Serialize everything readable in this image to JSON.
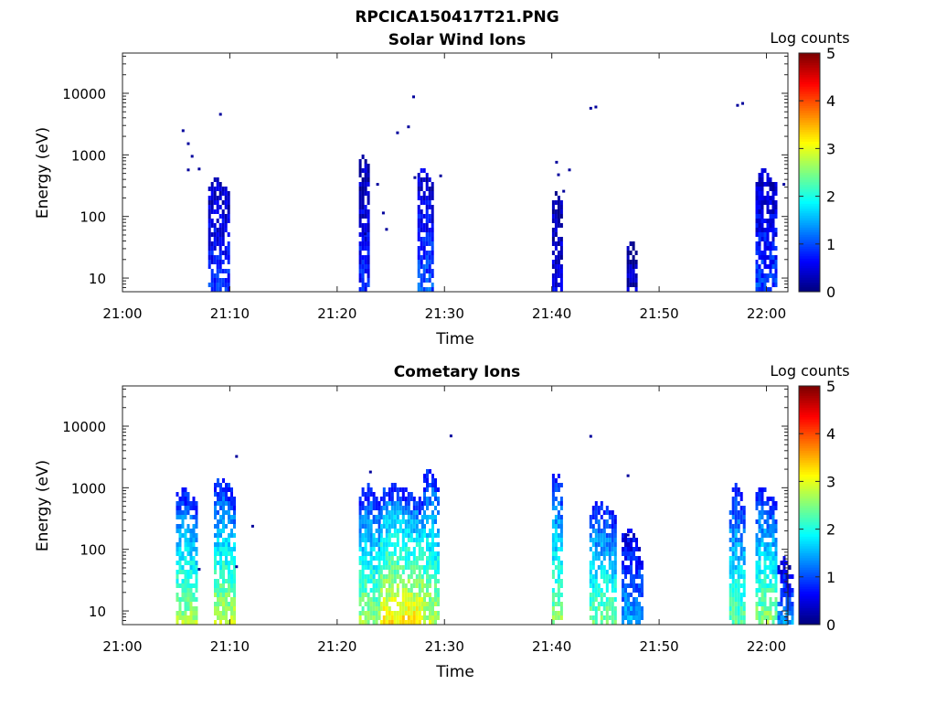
{
  "figure": {
    "title": "RPCICA150417T21.PNG"
  },
  "colorbar": {
    "label": "Log counts",
    "ticks": [
      "0",
      "1",
      "2",
      "3",
      "4",
      "5"
    ],
    "range": [
      0,
      5
    ],
    "colormap": "jet"
  },
  "chart_data": [
    {
      "type": "heatmap",
      "title": "Solar Wind Ions",
      "xlabel": "Time",
      "ylabel": "Energy (eV)",
      "x_ticks": [
        "21:00",
        "21:10",
        "21:20",
        "21:30",
        "21:40",
        "21:50",
        "22:00"
      ],
      "y_ticks": [
        "10",
        "100",
        "1000",
        "10000"
      ],
      "xlim_minutes_after_2100": [
        0,
        62
      ],
      "ylim": [
        6,
        45000
      ],
      "yscale": "log",
      "colorbar_label": "Log counts",
      "bursts": [
        {
          "start": 21.133,
          "end": 21.167,
          "top_energy": 400,
          "intensity": 0.8
        },
        {
          "start": 21.367,
          "end": 21.383,
          "top_energy": 1000,
          "intensity": 0.7
        },
        {
          "start": 21.458,
          "end": 21.483,
          "top_energy": 600,
          "intensity": 1.0
        },
        {
          "start": 21.667,
          "end": 21.683,
          "top_energy": 250,
          "intensity": 0.5
        },
        {
          "start": 21.783,
          "end": 21.8,
          "top_energy": 40,
          "intensity": 0.3
        },
        {
          "start": 21.983,
          "end": 22.017,
          "top_energy": 550,
          "intensity": 0.9
        }
      ],
      "scatter": [
        {
          "t": 21.092,
          "e": 2600
        },
        {
          "t": 21.1,
          "e": 1600
        },
        {
          "t": 21.106,
          "e": 1000
        },
        {
          "t": 21.1,
          "e": 600
        },
        {
          "t": 21.117,
          "e": 620
        },
        {
          "t": 21.15,
          "e": 4800
        },
        {
          "t": 21.375,
          "e": 55
        },
        {
          "t": 21.394,
          "e": 350
        },
        {
          "t": 21.403,
          "e": 120
        },
        {
          "t": 21.408,
          "e": 65
        },
        {
          "t": 21.425,
          "e": 2400
        },
        {
          "t": 21.442,
          "e": 3000
        },
        {
          "t": 21.45,
          "e": 9200
        },
        {
          "t": 21.452,
          "e": 450
        },
        {
          "t": 21.492,
          "e": 480
        },
        {
          "t": 21.672,
          "e": 800
        },
        {
          "t": 21.675,
          "e": 500
        },
        {
          "t": 21.683,
          "e": 270
        },
        {
          "t": 21.692,
          "e": 600
        },
        {
          "t": 21.725,
          "e": 6000
        },
        {
          "t": 21.733,
          "e": 6300
        },
        {
          "t": 21.953,
          "e": 6700
        },
        {
          "t": 21.961,
          "e": 7200
        },
        {
          "t": 22.025,
          "e": 350
        }
      ]
    },
    {
      "type": "heatmap",
      "title": "Cometary Ions",
      "xlabel": "Time",
      "ylabel": "Energy (eV)",
      "x_ticks": [
        "21:00",
        "21:10",
        "21:20",
        "21:30",
        "21:40",
        "21:50",
        "22:00"
      ],
      "y_ticks": [
        "10",
        "100",
        "1000",
        "10000"
      ],
      "xlim_minutes_after_2100": [
        0,
        62
      ],
      "ylim": [
        6,
        45000
      ],
      "yscale": "log",
      "colorbar_label": "Log counts",
      "bursts": [
        {
          "start": 21.083,
          "end": 21.117,
          "top_energy": 950,
          "intensity": 2.5
        },
        {
          "start": 21.142,
          "end": 21.175,
          "top_energy": 1400,
          "intensity": 2.6
        },
        {
          "start": 21.367,
          "end": 21.4,
          "top_energy": 1100,
          "intensity": 2.5
        },
        {
          "start": 21.4,
          "end": 21.467,
          "top_energy": 1100,
          "intensity": 3.0
        },
        {
          "start": 21.467,
          "end": 21.492,
          "top_energy": 1900,
          "intensity": 2.6
        },
        {
          "start": 21.667,
          "end": 21.683,
          "top_energy": 1900,
          "intensity": 2.4
        },
        {
          "start": 21.725,
          "end": 21.767,
          "top_energy": 600,
          "intensity": 2.3
        },
        {
          "start": 21.775,
          "end": 21.808,
          "top_energy": 200,
          "intensity": 1.4
        },
        {
          "start": 21.942,
          "end": 21.967,
          "top_energy": 1100,
          "intensity": 2.2
        },
        {
          "start": 21.983,
          "end": 22.017,
          "top_energy": 1000,
          "intensity": 2.4
        },
        {
          "start": 22.017,
          "end": 22.042,
          "top_energy": 70,
          "intensity": 1.3
        }
      ],
      "scatter": [
        {
          "t": 21.175,
          "e": 3400
        },
        {
          "t": 21.2,
          "e": 250
        },
        {
          "t": 21.383,
          "e": 1900
        },
        {
          "t": 21.508,
          "e": 7300
        },
        {
          "t": 21.725,
          "e": 7200
        },
        {
          "t": 21.783,
          "e": 1650
        },
        {
          "t": 21.117,
          "e": 50
        },
        {
          "t": 21.175,
          "e": 55
        },
        {
          "t": 21.783,
          "e": 180
        }
      ]
    }
  ]
}
